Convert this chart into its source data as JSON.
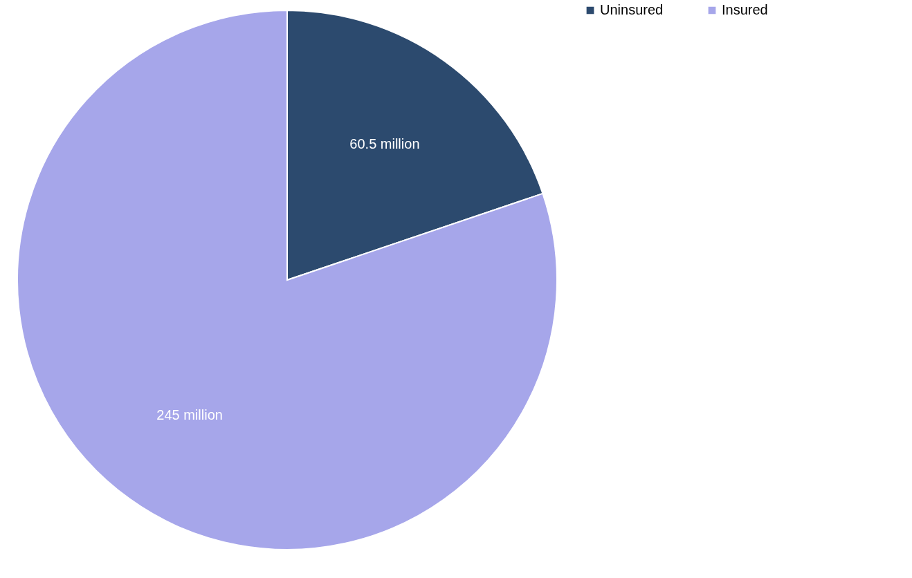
{
  "chart_data": {
    "type": "pie",
    "categories": [
      "Uninsured",
      "Insured"
    ],
    "values": [
      60.5,
      245
    ],
    "colors": [
      "#2c4a6e",
      "#a6a6ea"
    ],
    "value_labels": [
      "60.5 million",
      "245 million"
    ],
    "legend": "right"
  }
}
